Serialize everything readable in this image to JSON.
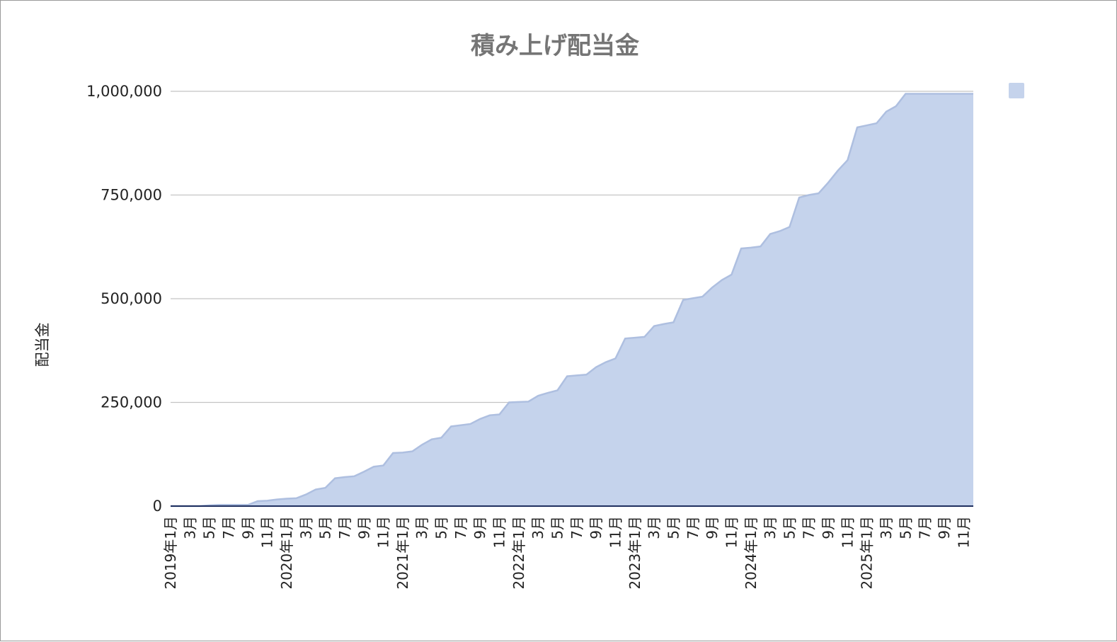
{
  "chart_data": {
    "type": "area",
    "title": "積み上げ配当金",
    "xlabel": "",
    "ylabel": "配当金",
    "ylim": [
      0,
      1000000
    ],
    "yticks": [
      0,
      250000,
      500000,
      750000,
      1000000
    ],
    "ytick_labels": [
      "0",
      "250,000",
      "500,000",
      "750,000",
      "1,000,000"
    ],
    "grid": true,
    "legend": "top-right",
    "color": "#c5d3ec",
    "line_color": "#aebfe0",
    "x_labels": [
      "2019年1月",
      "3月",
      "5月",
      "7月",
      "9月",
      "11月",
      "2020年1月",
      "3月",
      "5月",
      "7月",
      "9月",
      "11月",
      "2021年1月",
      "3月",
      "5月",
      "7月",
      "9月",
      "11月",
      "2022年1月",
      "3月",
      "5月",
      "7月",
      "9月",
      "11月",
      "2023年1月",
      "3月",
      "5月",
      "7月",
      "9月",
      "11月",
      "2024年1月",
      "3月",
      "5月",
      "7月",
      "9月",
      "11月",
      "2025年1月",
      "3月",
      "5月",
      "7月",
      "9月",
      "11月"
    ],
    "series": [
      {
        "values": [
          0,
          0,
          0,
          0,
          2000,
          3000,
          3000,
          3000,
          3000,
          12000,
          13000,
          16000,
          18000,
          19000,
          28000,
          40000,
          44000,
          67000,
          70000,
          72000,
          83000,
          95000,
          98000,
          128000,
          129000,
          132000,
          148000,
          161000,
          165000,
          192000,
          195000,
          198000,
          210000,
          219000,
          221000,
          250000,
          251000,
          252000,
          266000,
          273000,
          279000,
          313000,
          315000,
          317000,
          335000,
          347000,
          356000,
          404000,
          406000,
          408000,
          434000,
          439000,
          443000,
          497000,
          501000,
          505000,
          527000,
          545000,
          558000,
          621000,
          623000,
          626000,
          656000,
          663000,
          673000,
          744000,
          750000,
          754000,
          780000,
          809000,
          834000,
          913000,
          918000,
          923000,
          951000,
          964000,
          994000,
          994000,
          994000,
          994000,
          994000,
          994000,
          994000,
          994000
        ]
      }
    ]
  }
}
